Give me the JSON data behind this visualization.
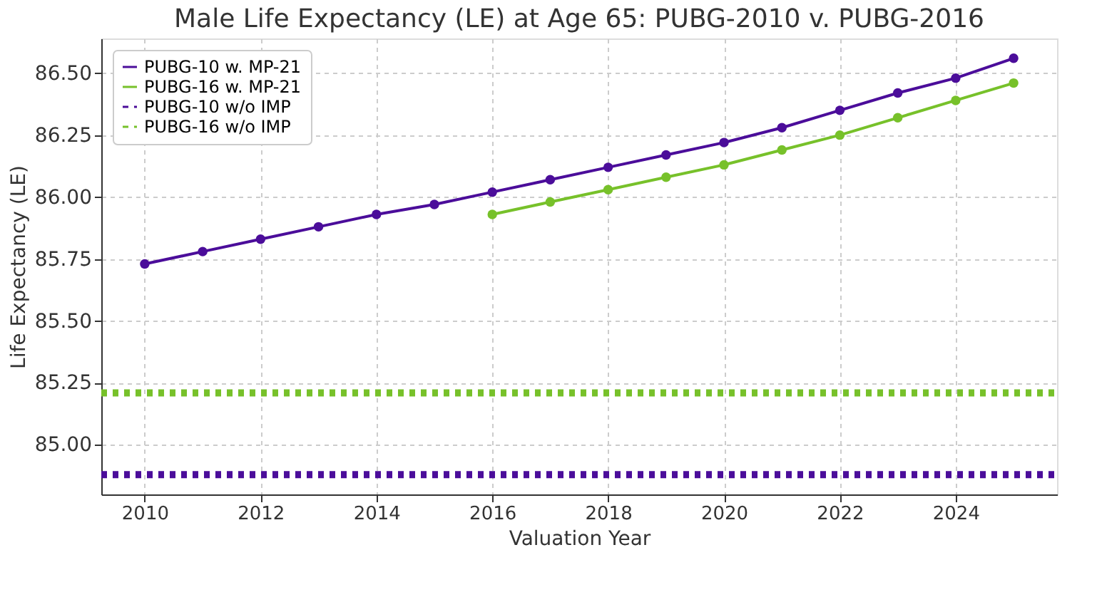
{
  "chart_data": {
    "type": "line",
    "title": "Male Life Expectancy (LE) at Age 65: PUBG-2010 v. PUBG-2016",
    "xlabel": "Valuation Year",
    "ylabel": "Life Expectancy (LE)",
    "x": [
      2010,
      2011,
      2012,
      2013,
      2014,
      2015,
      2016,
      2017,
      2018,
      2019,
      2020,
      2021,
      2022,
      2023,
      2024,
      2025
    ],
    "series": [
      {
        "name": "PUBG-10 w. MP-21",
        "color": "#4b0d9a",
        "marker": "circle",
        "line_style": "solid",
        "values": [
          85.73,
          85.78,
          85.83,
          85.88,
          85.93,
          85.97,
          86.02,
          86.07,
          86.12,
          86.17,
          86.22,
          86.28,
          86.35,
          86.42,
          86.48,
          86.56
        ]
      },
      {
        "name": "PUBG-16 w. MP-21",
        "color": "#77c12a",
        "marker": "circle",
        "line_style": "solid",
        "x": [
          2016,
          2017,
          2018,
          2019,
          2020,
          2021,
          2022,
          2023,
          2024,
          2025
        ],
        "values": [
          85.93,
          85.98,
          86.03,
          86.08,
          86.13,
          86.19,
          86.25,
          86.32,
          86.39,
          86.46
        ]
      },
      {
        "name": "PUBG-10 w/o IMP",
        "color": "#4b0d9a",
        "marker": "none",
        "line_style": "dotted",
        "x": [
          2009.25,
          2025.75
        ],
        "values": [
          84.88,
          84.88
        ]
      },
      {
        "name": "PUBG-16 w/o IMP",
        "color": "#77c12a",
        "marker": "none",
        "line_style": "dotted",
        "x": [
          2009.25,
          2025.75
        ],
        "values": [
          85.21,
          85.21
        ]
      }
    ],
    "xlim": [
      2009.25,
      2025.75
    ],
    "xticks": [
      2010,
      2012,
      2014,
      2016,
      2018,
      2020,
      2022,
      2024
    ],
    "ylim": [
      84.8,
      86.64
    ],
    "yticks": [
      {
        "value": 85.0,
        "label": "85.00"
      },
      {
        "value": 85.25,
        "label": "85.25"
      },
      {
        "value": 85.5,
        "label": "85.50"
      },
      {
        "value": 85.75,
        "label": "85.75"
      },
      {
        "value": 86.0,
        "label": "86.00"
      },
      {
        "value": 86.25,
        "label": "86.25"
      },
      {
        "value": 86.5,
        "label": "86.50"
      }
    ],
    "grid": true,
    "legend": "top left"
  }
}
